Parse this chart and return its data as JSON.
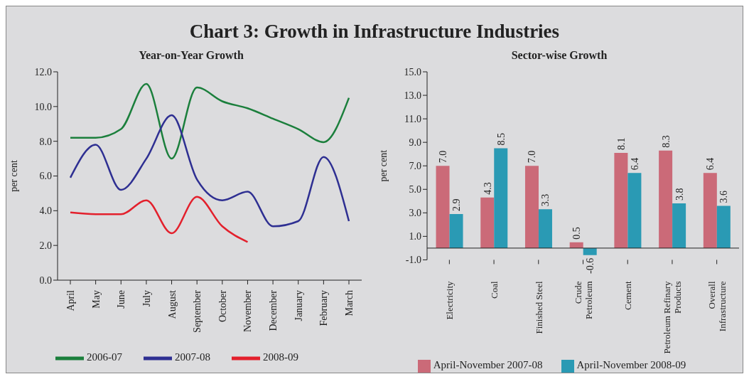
{
  "chart_data": [
    {
      "type": "line",
      "title": "Chart 3: Growth in Infrastructure Industries",
      "subtitle": "Year-on-Year Growth",
      "ylabel": "per cent",
      "categories": [
        "April",
        "May",
        "June",
        "July",
        "August",
        "September",
        "October",
        "November",
        "December",
        "January",
        "February",
        "March"
      ],
      "series": [
        {
          "name": "2006-07",
          "color": "#1b7f3c",
          "values": [
            8.2,
            8.2,
            8.7,
            11.3,
            7.0,
            11.1,
            10.3,
            9.9,
            9.3,
            8.7,
            7.95,
            10.5
          ]
        },
        {
          "name": "2007-08",
          "color": "#2e2f92",
          "values": [
            5.9,
            7.8,
            5.2,
            7.0,
            9.5,
            5.8,
            4.6,
            5.1,
            3.1,
            3.4,
            7.1,
            3.4
          ]
        },
        {
          "name": "2008-09",
          "color": "#e3202c",
          "values": [
            3.9,
            3.8,
            3.8,
            4.6,
            2.7,
            4.8,
            3.1,
            2.2,
            null,
            null,
            null,
            null
          ]
        }
      ],
      "ylim": [
        0,
        12
      ],
      "yticks": [
        {
          "value": 0,
          "label": "0.0"
        },
        {
          "value": 2,
          "label": "2.0"
        },
        {
          "value": 4,
          "label": "4.0"
        },
        {
          "value": 6,
          "label": "6.0"
        },
        {
          "value": 8,
          "label": "8.0"
        },
        {
          "value": 10,
          "label": "10.0"
        },
        {
          "value": 12,
          "label": "12.0"
        }
      ],
      "grid": false,
      "legend": "bottom",
      "marker": "none",
      "line_style": "solid"
    },
    {
      "type": "bar",
      "title": "Sector-wise Growth",
      "ylabel": "per cent",
      "categories": [
        "Electricity",
        "Coal",
        "Finished Steel",
        "Crude\nPetroleum",
        "Cement",
        "Petroleum Refinary\nProducts",
        "Overall\nInfrastructure"
      ],
      "series": [
        {
          "name": "April-November 2007-08",
          "color": "#cb6a78",
          "values": [
            7.0,
            4.3,
            7.0,
            0.5,
            8.1,
            8.3,
            6.4
          ],
          "value_labels": [
            "7.0",
            "4.3",
            "7.0",
            "0.5",
            "8.1",
            "8.3",
            "6.4"
          ]
        },
        {
          "name": "April-November 2008-09",
          "color": "#2a9ab4",
          "values": [
            2.9,
            8.5,
            3.3,
            -0.6,
            6.4,
            3.8,
            3.6
          ],
          "value_labels": [
            "2.9",
            "8.5",
            "3.3",
            "-0.6",
            "6.4",
            "3.8",
            "3.6"
          ]
        }
      ],
      "ylim": [
        -1,
        15
      ],
      "yticks": [
        {
          "value": -1,
          "label": "-1.0"
        },
        {
          "value": 1,
          "label": "1.0"
        },
        {
          "value": 3,
          "label": "3.0"
        },
        {
          "value": 5,
          "label": "5.0"
        },
        {
          "value": 7,
          "label": "7.0"
        },
        {
          "value": 9,
          "label": "9.0"
        },
        {
          "value": 11,
          "label": "11.0"
        },
        {
          "value": 13,
          "label": "13.0"
        },
        {
          "value": 15,
          "label": "15.0"
        }
      ],
      "grid": false,
      "legend": "bottom"
    }
  ]
}
